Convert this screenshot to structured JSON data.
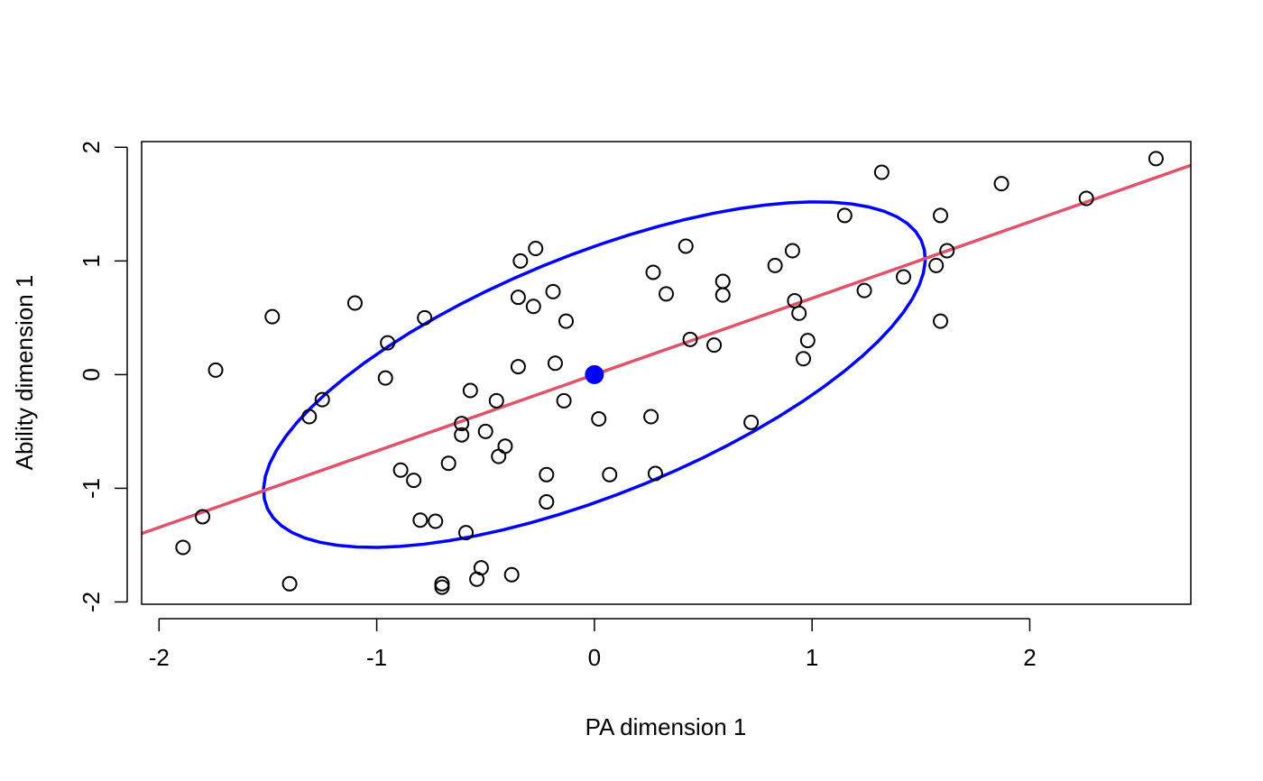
{
  "chart_data": {
    "type": "scatter",
    "title": "",
    "xlabel": "PA dimension 1",
    "ylabel": "Ability dimension 1",
    "xlim": [
      -2.08,
      2.74
    ],
    "ylim": [
      -2.02,
      2.05
    ],
    "xticks": [
      -2,
      -1,
      0,
      1,
      2
    ],
    "xtick_labels": [
      "-2",
      "-1",
      "0",
      "1",
      "2"
    ],
    "yticks": [
      -2,
      -1,
      0,
      1,
      2
    ],
    "ytick_labels": [
      "-2",
      "-1",
      "0",
      "1",
      "2"
    ],
    "grid": false,
    "legend": "none",
    "colors": {
      "points": "#000000",
      "ellipse": "#0000ff",
      "centroid": "#0000ff",
      "regression_line": "#df536b"
    },
    "points": [
      {
        "x": -1.89,
        "y": -1.52
      },
      {
        "x": -1.8,
        "y": -1.25
      },
      {
        "x": -1.74,
        "y": 0.04
      },
      {
        "x": -1.48,
        "y": 0.51
      },
      {
        "x": -1.4,
        "y": -1.84
      },
      {
        "x": -1.31,
        "y": -0.37
      },
      {
        "x": -1.25,
        "y": -0.22
      },
      {
        "x": -1.1,
        "y": 0.63
      },
      {
        "x": -0.96,
        "y": -0.03
      },
      {
        "x": -0.95,
        "y": 0.28
      },
      {
        "x": -0.89,
        "y": -0.84
      },
      {
        "x": -0.83,
        "y": -0.93
      },
      {
        "x": -0.8,
        "y": -1.28
      },
      {
        "x": -0.78,
        "y": 0.5
      },
      {
        "x": -0.73,
        "y": -1.29
      },
      {
        "x": -0.7,
        "y": -1.84
      },
      {
        "x": -0.7,
        "y": -1.87
      },
      {
        "x": -0.67,
        "y": -0.78
      },
      {
        "x": -0.61,
        "y": -0.43
      },
      {
        "x": -0.61,
        "y": -0.53
      },
      {
        "x": -0.59,
        "y": -1.39
      },
      {
        "x": -0.57,
        "y": -0.14
      },
      {
        "x": -0.54,
        "y": -1.8
      },
      {
        "x": -0.52,
        "y": -1.7
      },
      {
        "x": -0.5,
        "y": -0.5
      },
      {
        "x": -0.45,
        "y": -0.23
      },
      {
        "x": -0.44,
        "y": -0.72
      },
      {
        "x": -0.41,
        "y": -0.63
      },
      {
        "x": -0.38,
        "y": -1.76
      },
      {
        "x": -0.35,
        "y": 0.68
      },
      {
        "x": -0.35,
        "y": 0.07
      },
      {
        "x": -0.34,
        "y": 1.0
      },
      {
        "x": -0.28,
        "y": 0.6
      },
      {
        "x": -0.27,
        "y": 1.11
      },
      {
        "x": -0.22,
        "y": -0.88
      },
      {
        "x": -0.22,
        "y": -1.12
      },
      {
        "x": -0.19,
        "y": 0.73
      },
      {
        "x": -0.18,
        "y": 0.1
      },
      {
        "x": -0.14,
        "y": -0.23
      },
      {
        "x": -0.13,
        "y": 0.47
      },
      {
        "x": 0.02,
        "y": -0.39
      },
      {
        "x": 0.07,
        "y": -0.88
      },
      {
        "x": 0.26,
        "y": -0.37
      },
      {
        "x": 0.27,
        "y": 0.9
      },
      {
        "x": 0.28,
        "y": -0.87
      },
      {
        "x": 0.33,
        "y": 0.71
      },
      {
        "x": 0.42,
        "y": 1.13
      },
      {
        "x": 0.44,
        "y": 0.31
      },
      {
        "x": 0.55,
        "y": 0.26
      },
      {
        "x": 0.59,
        "y": 0.82
      },
      {
        "x": 0.59,
        "y": 0.7
      },
      {
        "x": 0.72,
        "y": -0.42
      },
      {
        "x": 0.83,
        "y": 0.96
      },
      {
        "x": 0.91,
        "y": 1.09
      },
      {
        "x": 0.92,
        "y": 0.65
      },
      {
        "x": 0.94,
        "y": 0.54
      },
      {
        "x": 0.96,
        "y": 0.14
      },
      {
        "x": 0.98,
        "y": 0.3
      },
      {
        "x": 1.15,
        "y": 1.4
      },
      {
        "x": 1.24,
        "y": 0.74
      },
      {
        "x": 1.32,
        "y": 1.78
      },
      {
        "x": 1.42,
        "y": 0.86
      },
      {
        "x": 1.57,
        "y": 0.96
      },
      {
        "x": 1.59,
        "y": 1.4
      },
      {
        "x": 1.59,
        "y": 0.47
      },
      {
        "x": 1.62,
        "y": 1.09
      },
      {
        "x": 1.87,
        "y": 1.68
      },
      {
        "x": 2.26,
        "y": 1.55
      },
      {
        "x": 2.58,
        "y": 1.9
      }
    ],
    "centroid": {
      "x": 0.0,
      "y": 0.0
    },
    "regression_line": {
      "intercept": 0.0,
      "slope": 0.672
    },
    "ellipse": {
      "center_x": 0.0,
      "center_y": 0.0,
      "x_extent": 1.52,
      "y_extent": 1.52,
      "correlation": 0.67
    }
  }
}
